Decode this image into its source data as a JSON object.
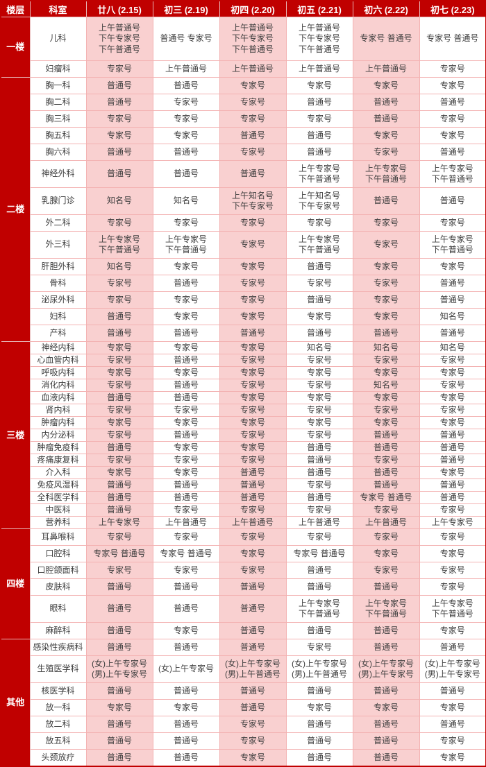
{
  "table": {
    "columns": [
      "楼层",
      "科室",
      "廿八 (2.15)",
      "初三 (2.19)",
      "初四 (2.20)",
      "初五 (2.21)",
      "初六 (2.22)",
      "初七 (2.23)"
    ],
    "colors": {
      "header_bg": "#c00000",
      "pink_cell": "#f9d0d0",
      "white_cell": "#ffffff",
      "grid": "#f3b2b2",
      "text": "#3d3d3d"
    },
    "ticket_types": [
      "普通号",
      "专家号",
      "知名号"
    ],
    "sections": [
      {
        "floor": "一楼",
        "rows": [
          {
            "dept": "儿科",
            "cells": [
              "上午普通号\n下午专家号\n下午普通号",
              "普通号 专家号",
              "上午普通号\n下午专家号\n下午普通号",
              "上午普通号\n下午专家号\n下午普通号",
              "专家号 普通号",
              "专家号 普通号"
            ]
          },
          {
            "dept": "妇瘤科",
            "cells": [
              "专家号",
              "上午普通号",
              "上午普通号",
              "上午普通号",
              "上午普通号",
              "专家号"
            ]
          }
        ]
      },
      {
        "floor": "二楼",
        "rows": [
          {
            "dept": "胸一科",
            "cells": [
              "普通号",
              "普通号",
              "专家号",
              "专家号",
              "专家号",
              "专家号"
            ]
          },
          {
            "dept": "胸二科",
            "cells": [
              "普通号",
              "专家号",
              "专家号",
              "普通号",
              "普通号",
              "普通号"
            ]
          },
          {
            "dept": "胸三科",
            "cells": [
              "专家号",
              "专家号",
              "专家号",
              "专家号",
              "普通号",
              "专家号"
            ]
          },
          {
            "dept": "胸五科",
            "cells": [
              "专家号",
              "专家号",
              "普通号",
              "普通号",
              "专家号",
              "专家号"
            ]
          },
          {
            "dept": "胸六科",
            "cells": [
              "普通号",
              "普通号",
              "专家号",
              "普通号",
              "专家号",
              "普通号"
            ]
          },
          {
            "dept": "神经外科",
            "cells": [
              "普通号",
              "普通号",
              "普通号",
              "上午专家号\n下午普通号",
              "上午专家号\n下午普通号",
              "上午专家号\n下午普通号"
            ]
          },
          {
            "dept": "乳腺门诊",
            "cells": [
              "知名号",
              "知名号",
              "上午知名号\n下午专家号",
              "上午知名号\n下午专家号",
              "普通号",
              "普通号"
            ]
          },
          {
            "dept": "外二科",
            "cells": [
              "专家号",
              "专家号",
              "专家号",
              "专家号",
              "专家号",
              "专家号"
            ]
          },
          {
            "dept": "外三科",
            "cells": [
              "上午专家号\n下午普通号",
              "上午专家号\n下午普通号",
              "专家号",
              "上午专家号\n下午普通号",
              "专家号",
              "上午专家号\n下午普通号"
            ]
          },
          {
            "dept": "肝胆外科",
            "cells": [
              "知名号",
              "专家号",
              "专家号",
              "普通号",
              "专家号",
              "专家号"
            ]
          },
          {
            "dept": "骨科",
            "cells": [
              "专家号",
              "普通号",
              "专家号",
              "专家号",
              "专家号",
              "普通号"
            ]
          },
          {
            "dept": "泌尿外科",
            "cells": [
              "专家号",
              "专家号",
              "专家号",
              "普通号",
              "专家号",
              "普通号"
            ]
          },
          {
            "dept": "妇科",
            "cells": [
              "普通号",
              "专家号",
              "专家号",
              "专家号",
              "专家号",
              "知名号"
            ]
          },
          {
            "dept": "产科",
            "cells": [
              "普通号",
              "普通号",
              "普通号",
              "普通号",
              "普通号",
              "普通号"
            ]
          }
        ]
      },
      {
        "floor": "三楼",
        "rows": [
          {
            "dept": "神经内科",
            "cells": [
              "专家号",
              "专家号",
              "专家号",
              "知名号",
              "知名号",
              "知名号"
            ]
          },
          {
            "dept": "心血管内科",
            "cells": [
              "专家号",
              "普通号",
              "专家号",
              "专家号",
              "专家号",
              "专家号"
            ]
          },
          {
            "dept": "呼吸内科",
            "cells": [
              "专家号",
              "专家号",
              "专家号",
              "专家号",
              "专家号",
              "专家号"
            ]
          },
          {
            "dept": "消化内科",
            "cells": [
              "专家号",
              "普通号",
              "专家号",
              "专家号",
              "知名号",
              "专家号"
            ]
          },
          {
            "dept": "血液内科",
            "cells": [
              "普通号",
              "普通号",
              "专家号",
              "专家号",
              "专家号",
              "专家号"
            ]
          },
          {
            "dept": "肾内科",
            "cells": [
              "专家号",
              "专家号",
              "专家号",
              "专家号",
              "专家号",
              "专家号"
            ]
          },
          {
            "dept": "肿瘤内科",
            "cells": [
              "专家号",
              "专家号",
              "专家号",
              "专家号",
              "专家号",
              "专家号"
            ]
          },
          {
            "dept": "内分泌科",
            "cells": [
              "专家号",
              "普通号",
              "专家号",
              "专家号",
              "普通号",
              "普通号"
            ]
          },
          {
            "dept": "肿瘤免疫科",
            "cells": [
              "普通号",
              "专家号",
              "专家号",
              "普通号",
              "普通号",
              "普通号"
            ]
          },
          {
            "dept": "疼痛康复科",
            "cells": [
              "专家号",
              "专家号",
              "专家号",
              "普通号",
              "专家号",
              "普通号"
            ]
          },
          {
            "dept": "介入科",
            "cells": [
              "专家号",
              "专家号",
              "普通号",
              "普通号",
              "普通号",
              "专家号"
            ]
          },
          {
            "dept": "免疫风湿科",
            "cells": [
              "普通号",
              "普通号",
              "普通号",
              "专家号",
              "普通号",
              "普通号"
            ]
          },
          {
            "dept": "全科医学科",
            "cells": [
              "普通号",
              "普通号",
              "普通号",
              "普通号",
              "专家号 普通号",
              "普通号"
            ]
          },
          {
            "dept": "中医科",
            "cells": [
              "普通号",
              "专家号",
              "专家号",
              "专家号",
              "专家号",
              "专家号"
            ]
          },
          {
            "dept": "营养科",
            "cells": [
              "上午专家号",
              "上午普通号",
              "上午普通号",
              "上午普通号",
              "上午普通号",
              "上午专家号"
            ]
          }
        ]
      },
      {
        "floor": "四楼",
        "rows": [
          {
            "dept": "耳鼻喉科",
            "cells": [
              "专家号",
              "专家号",
              "专家号",
              "专家号",
              "专家号",
              "专家号"
            ]
          },
          {
            "dept": "口腔科",
            "cells": [
              "专家号 普通号",
              "专家号 普通号",
              "专家号",
              "专家号 普通号",
              "专家号",
              "专家号"
            ]
          },
          {
            "dept": "口腔颌面科",
            "cells": [
              "专家号",
              "专家号",
              "专家号",
              "普通号",
              "专家号",
              "专家号"
            ]
          },
          {
            "dept": "皮肤科",
            "cells": [
              "普通号",
              "普通号",
              "普通号",
              "普通号",
              "普通号",
              "专家号"
            ]
          },
          {
            "dept": "眼科",
            "cells": [
              "普通号",
              "普通号",
              "普通号",
              "上午专家号\n下午普通号",
              "上午专家号\n下午普通号",
              "上午专家号\n下午普通号"
            ]
          },
          {
            "dept": "麻醉科",
            "cells": [
              "普通号",
              "专家号",
              "普通号",
              "普通号",
              "普通号",
              "专家号"
            ]
          }
        ]
      },
      {
        "floor": "其他",
        "rows": [
          {
            "dept": "感染性疾病科",
            "cells": [
              "普通号",
              "普通号",
              "普通号",
              "专家号",
              "普通号",
              "普通号"
            ]
          },
          {
            "dept": "生殖医学科",
            "cells": [
              "(女)上午专家号\n(男)上午专家号",
              "(女)上午专家号",
              "(女)上午专家号\n(男)上午普通号",
              "(女)上午专家号\n(男)上午普通号",
              "(女)上午专家号\n(男)上午专家号",
              "(女)上午专家号\n(男)上午专家号"
            ]
          },
          {
            "dept": "核医学科",
            "cells": [
              "普通号",
              "普通号",
              "普通号",
              "普通号",
              "普通号",
              "普通号"
            ]
          },
          {
            "dept": "放一科",
            "cells": [
              "专家号",
              "专家号",
              "普通号",
              "专家号",
              "专家号",
              "专家号"
            ]
          },
          {
            "dept": "放二科",
            "cells": [
              "普通号",
              "普通号",
              "专家号",
              "普通号",
              "普通号",
              "普通号"
            ]
          },
          {
            "dept": "放五科",
            "cells": [
              "普通号",
              "普通号",
              "专家号",
              "普通号",
              "普通号",
              "专家号"
            ]
          },
          {
            "dept": "头颈放疗",
            "cells": [
              "普通号",
              "普通号",
              "专家号",
              "普通号",
              "普通号",
              "专家号"
            ]
          }
        ]
      }
    ]
  }
}
